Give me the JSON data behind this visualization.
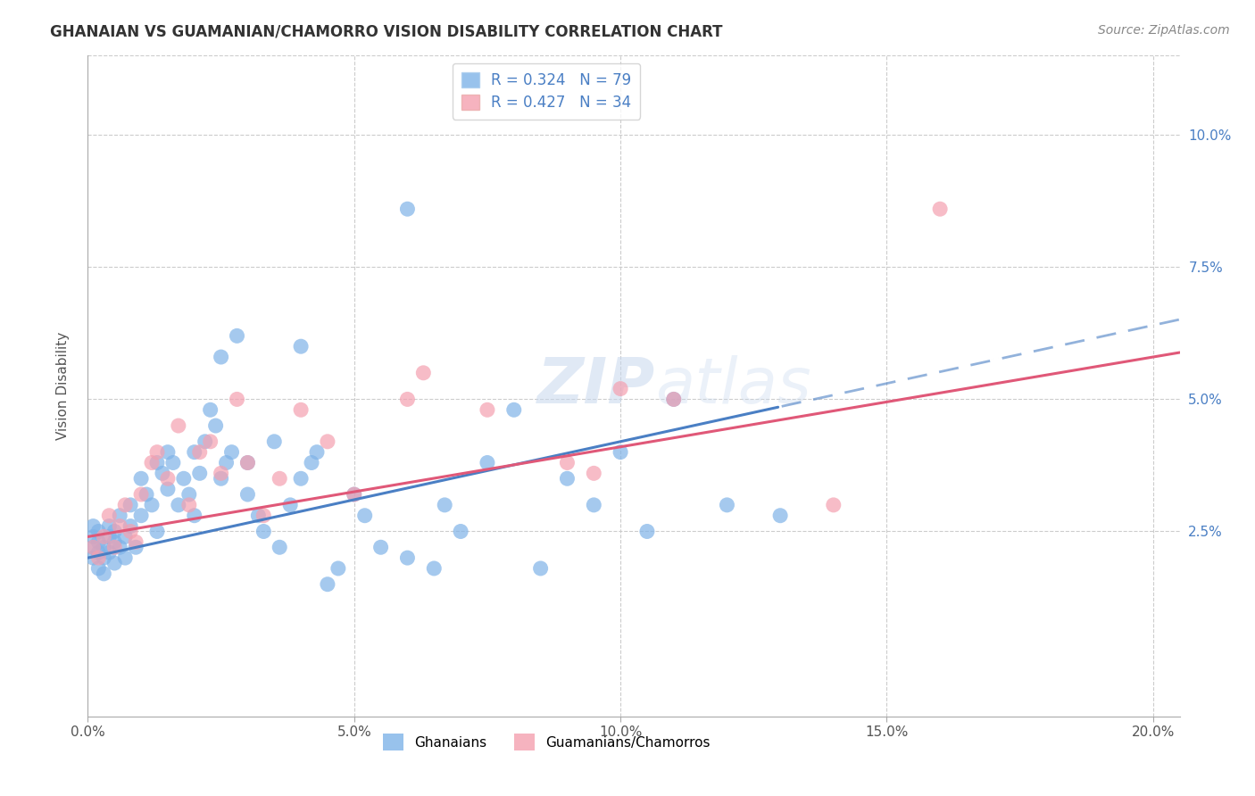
{
  "title": "GHANAIAN VS GUAMANIAN/CHAMORRO VISION DISABILITY CORRELATION CHART",
  "source": "Source: ZipAtlas.com",
  "ylabel": "Vision Disability",
  "legend_label_1": "Ghanaians",
  "legend_label_2": "Guamanians/Chamorros",
  "r1": 0.324,
  "n1": 79,
  "r2": 0.427,
  "n2": 34,
  "color_blue": "#7FB3E8",
  "color_pink": "#F4A0B0",
  "color_blue_line": "#4A7FC4",
  "color_pink_line": "#E05878",
  "color_text_blue": "#4A7FC4",
  "xlim": [
    0.0,
    0.205
  ],
  "ylim": [
    -0.01,
    0.115
  ],
  "x_ticks": [
    0.0,
    0.05,
    0.1,
    0.15,
    0.2
  ],
  "y_ticks": [
    0.025,
    0.05,
    0.075,
    0.1
  ],
  "background_color": "#FFFFFF",
  "grid_color": "#CCCCCC",
  "watermark_color": "#DDEEFF",
  "blue_intercept": 0.02,
  "blue_slope": 0.22,
  "pink_intercept": 0.024,
  "pink_slope": 0.17,
  "ghanaian_x": [
    0.001,
    0.001,
    0.001,
    0.001,
    0.002,
    0.002,
    0.002,
    0.002,
    0.003,
    0.003,
    0.003,
    0.004,
    0.004,
    0.004,
    0.005,
    0.005,
    0.005,
    0.006,
    0.006,
    0.007,
    0.007,
    0.008,
    0.008,
    0.009,
    0.01,
    0.01,
    0.011,
    0.012,
    0.013,
    0.013,
    0.014,
    0.015,
    0.015,
    0.016,
    0.017,
    0.018,
    0.019,
    0.02,
    0.02,
    0.021,
    0.022,
    0.023,
    0.024,
    0.025,
    0.025,
    0.026,
    0.027,
    0.028,
    0.03,
    0.03,
    0.032,
    0.033,
    0.035,
    0.036,
    0.038,
    0.04,
    0.04,
    0.042,
    0.043,
    0.045,
    0.047,
    0.05,
    0.052,
    0.055,
    0.06,
    0.065,
    0.067,
    0.07,
    0.075,
    0.08,
    0.085,
    0.09,
    0.095,
    0.1,
    0.105,
    0.11,
    0.12,
    0.13,
    0.06
  ],
  "ghanaian_y": [
    0.02,
    0.022,
    0.024,
    0.026,
    0.018,
    0.021,
    0.023,
    0.025,
    0.02,
    0.022,
    0.017,
    0.024,
    0.026,
    0.021,
    0.023,
    0.019,
    0.025,
    0.022,
    0.028,
    0.024,
    0.02,
    0.026,
    0.03,
    0.022,
    0.028,
    0.035,
    0.032,
    0.03,
    0.025,
    0.038,
    0.036,
    0.04,
    0.033,
    0.038,
    0.03,
    0.035,
    0.032,
    0.028,
    0.04,
    0.036,
    0.042,
    0.048,
    0.045,
    0.035,
    0.058,
    0.038,
    0.04,
    0.062,
    0.032,
    0.038,
    0.028,
    0.025,
    0.042,
    0.022,
    0.03,
    0.035,
    0.06,
    0.038,
    0.04,
    0.015,
    0.018,
    0.032,
    0.028,
    0.022,
    0.02,
    0.018,
    0.03,
    0.025,
    0.038,
    0.048,
    0.018,
    0.035,
    0.03,
    0.04,
    0.025,
    0.05,
    0.03,
    0.028,
    0.086
  ],
  "guamanian_x": [
    0.001,
    0.002,
    0.003,
    0.004,
    0.005,
    0.006,
    0.007,
    0.008,
    0.009,
    0.01,
    0.012,
    0.013,
    0.015,
    0.017,
    0.019,
    0.021,
    0.023,
    0.025,
    0.028,
    0.03,
    0.033,
    0.036,
    0.04,
    0.045,
    0.05,
    0.06,
    0.063,
    0.075,
    0.09,
    0.095,
    0.1,
    0.11,
    0.14,
    0.16
  ],
  "guamanian_y": [
    0.022,
    0.02,
    0.024,
    0.028,
    0.022,
    0.026,
    0.03,
    0.025,
    0.023,
    0.032,
    0.038,
    0.04,
    0.035,
    0.045,
    0.03,
    0.04,
    0.042,
    0.036,
    0.05,
    0.038,
    0.028,
    0.035,
    0.048,
    0.042,
    0.032,
    0.05,
    0.055,
    0.048,
    0.038,
    0.036,
    0.052,
    0.05,
    0.03,
    0.086
  ]
}
